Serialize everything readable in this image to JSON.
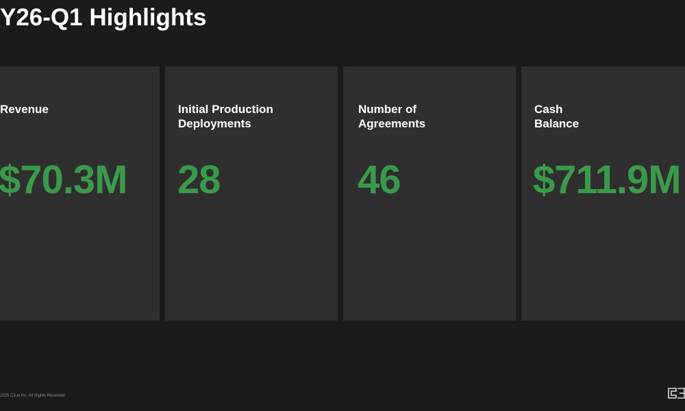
{
  "header": {
    "title": "Y26-Q1 Highlights"
  },
  "cards": [
    {
      "label": "Revenue",
      "value": "$70.3M"
    },
    {
      "label": "Initial Production\nDeployments",
      "value": "28"
    },
    {
      "label": "Number of\nAgreements",
      "value": "46"
    },
    {
      "label": "Cash\nBalance",
      "value": "$711.9M"
    }
  ],
  "footer": {
    "text": "2025 C3.ai Inc. All Rights Reserved."
  }
}
